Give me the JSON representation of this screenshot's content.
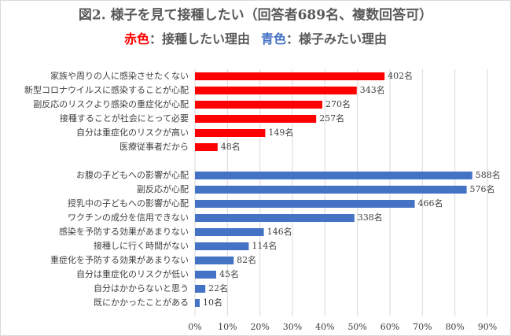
{
  "chart_data": {
    "type": "hbar",
    "title": "図2. 様子を見て接種したい（回答者689名、複数回答可）",
    "subtitle": [
      {
        "text": "赤色",
        "color": "#ff0000"
      },
      {
        "text": "：接種したい理由",
        "color": "#595959"
      },
      {
        "text": "青色",
        "color": "#4472c4"
      },
      {
        "text": "：様子みたい理由",
        "color": "#595959"
      }
    ],
    "categories": [
      "家族や周りの人に感染させたくない",
      "新型コロナウイルスに感染することが心配",
      "副反応のリスクより感染の重症化が心配",
      "接種することが社会にとって必要",
      "自分は重症化のリスクが高い",
      "医療従事者だから",
      null,
      "お腹の子どもへの影響が心配",
      "副反応が心配",
      "授乳中の子どもへの影響が心配",
      "ワクチンの成分を信用できない",
      "感染を予防する効果があまりない",
      "接種しに行く時間がない",
      "重症化を予防する効果があまりない",
      "自分は重症化のリスクが低い",
      "自分はかからないと思う",
      "既にかかったことがある"
    ],
    "series": [
      {
        "color": "#ff0000",
        "values": [
          58.35,
          49.78,
          39.19,
          37.3,
          21.63,
          6.97,
          null,
          null,
          null,
          null,
          null,
          null,
          null,
          null,
          null,
          null,
          null
        ],
        "value_labels": [
          "402名",
          "343名",
          "270名",
          "257名",
          "149名",
          "48名",
          null,
          null,
          null,
          null,
          null,
          null,
          null,
          null,
          null,
          null,
          null
        ]
      },
      {
        "color": "#4472c4",
        "values": [
          null,
          null,
          null,
          null,
          null,
          null,
          null,
          85.34,
          83.6,
          67.63,
          49.06,
          21.19,
          16.55,
          11.9,
          6.53,
          3.19,
          1.45
        ],
        "value_labels": [
          null,
          null,
          null,
          null,
          null,
          null,
          null,
          "588名",
          "576名",
          "466名",
          "338名",
          "146名",
          "114名",
          "82名",
          "45名",
          "22名",
          "10名"
        ]
      }
    ],
    "xlim": [
      0,
      90
    ],
    "xticks": [
      {
        "value": 0,
        "label": "0%"
      },
      {
        "value": 10,
        "label": "10%"
      },
      {
        "value": 20,
        "label": "20%"
      },
      {
        "value": 30,
        "label": "30%"
      },
      {
        "value": 40,
        "label": "40%"
      },
      {
        "value": 50,
        "label": "50%"
      },
      {
        "value": 60,
        "label": "60%"
      },
      {
        "value": 70,
        "label": "70%"
      },
      {
        "value": 80,
        "label": "80%"
      },
      {
        "value": 90,
        "label": "90%"
      }
    ],
    "grid": true
  }
}
